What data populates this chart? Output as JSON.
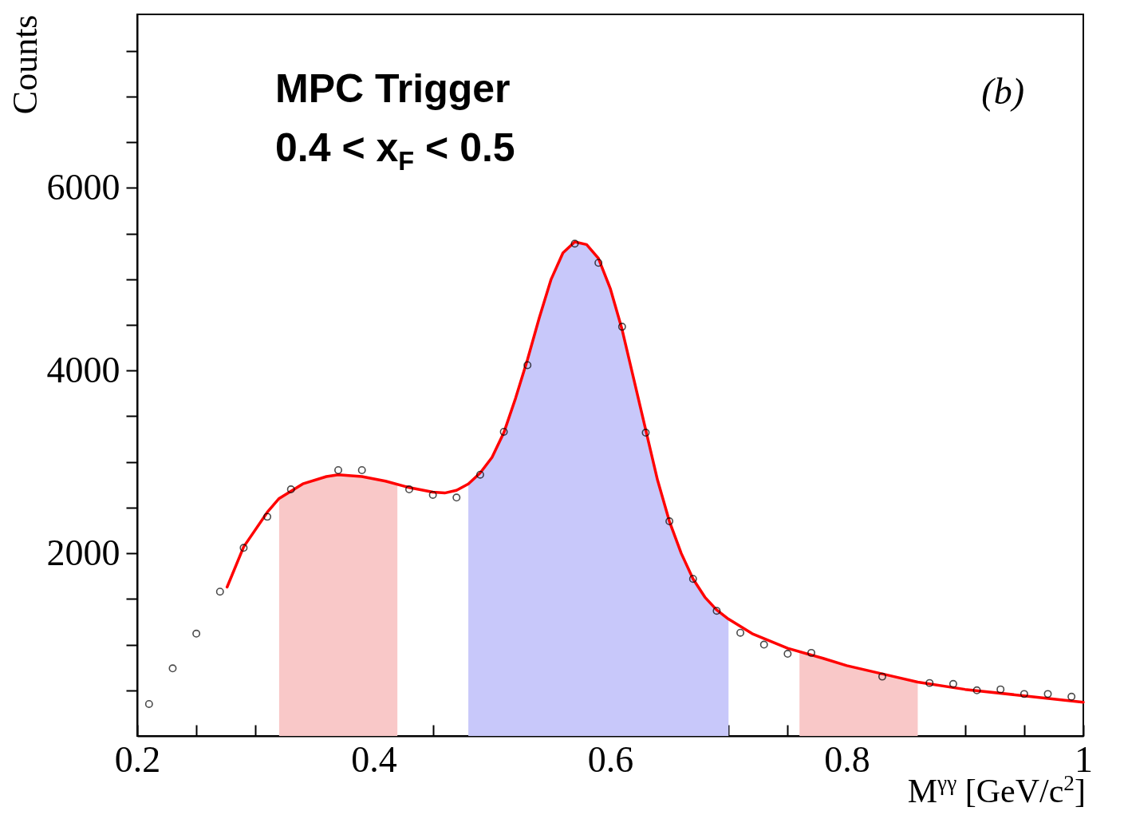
{
  "chart_data": {
    "type": "scatter",
    "xlabel": "M$^{γγ}$ [GeV/c$^{2}$]",
    "ylabel": "Counts",
    "annotations": [
      "MPC Trigger",
      "0.4 < x$_{F}$ < 0.5",
      "(b)"
    ],
    "xlim": [
      0.2,
      1.0
    ],
    "xticks": [
      0.2,
      {
        "value": 0.25,
        "label": null
      },
      {
        "value": 0.3,
        "label": null
      },
      {
        "value": 0.35,
        "label": null
      },
      0.4,
      {
        "value": 0.45,
        "label": null
      },
      {
        "value": 0.5,
        "label": null
      },
      {
        "value": 0.55,
        "label": null
      },
      0.6,
      {
        "value": 0.65,
        "label": null
      },
      {
        "value": 0.7,
        "label": null
      },
      {
        "value": 0.75,
        "label": null
      },
      0.8,
      {
        "value": 0.85,
        "label": null
      },
      {
        "value": 0.9,
        "label": null
      },
      {
        "value": 0.95,
        "label": null
      },
      1
    ],
    "ylim": [
      0,
      7900
    ],
    "yticks": [
      {
        "value": 500,
        "label": null
      },
      {
        "value": 1000,
        "label": null
      },
      {
        "value": 1500,
        "label": null
      },
      2000,
      {
        "value": 2500,
        "label": null
      },
      {
        "value": 3000,
        "label": null
      },
      {
        "value": 3500,
        "label": null
      },
      4000,
      {
        "value": 4500,
        "label": null
      },
      {
        "value": 5000,
        "label": null
      },
      {
        "value": 5500,
        "label": null
      },
      6000,
      {
        "value": 6500,
        "label": null
      },
      {
        "value": 7000,
        "label": null
      },
      {
        "value": 7500,
        "label": null
      }
    ],
    "grid": false,
    "series": [
      {
        "type": "area",
        "color": "#f9c8c8",
        "x": [
          0.32,
          0.34,
          0.36,
          0.37,
          0.39,
          0.41,
          0.42
        ],
        "values": [
          2600,
          2760,
          2840,
          2860,
          2840,
          2790,
          2760
        ]
      },
      {
        "type": "area",
        "color": "#c8c8fa",
        "x": [
          0.48,
          0.49,
          0.5,
          0.51,
          0.52,
          0.53,
          0.54,
          0.55,
          0.56,
          0.57,
          0.58,
          0.59,
          0.6,
          0.61,
          0.62,
          0.63,
          0.64,
          0.65,
          0.66,
          0.67,
          0.68,
          0.69,
          0.7
        ],
        "values": [
          2760,
          2880,
          3050,
          3320,
          3700,
          4120,
          4580,
          5000,
          5290,
          5410,
          5380,
          5230,
          4900,
          4450,
          3900,
          3350,
          2800,
          2350,
          2000,
          1720,
          1520,
          1380,
          1280
        ]
      },
      {
        "type": "area",
        "color": "#f9c8c8",
        "x": [
          0.76,
          0.78,
          0.8,
          0.82,
          0.84,
          0.86
        ],
        "values": [
          920,
          850,
          770,
          710,
          650,
          590
        ]
      },
      {
        "type": "line",
        "color": "#ff0000",
        "x": [
          0.276,
          0.29,
          0.31,
          0.32,
          0.34,
          0.36,
          0.37,
          0.39,
          0.41,
          0.43,
          0.45,
          0.46,
          0.47,
          0.48,
          0.49,
          0.5,
          0.51,
          0.52,
          0.53,
          0.54,
          0.55,
          0.56,
          0.57,
          0.58,
          0.59,
          0.6,
          0.61,
          0.62,
          0.63,
          0.64,
          0.65,
          0.66,
          0.67,
          0.68,
          0.69,
          0.7,
          0.72,
          0.75,
          0.78,
          0.8,
          0.84,
          0.86,
          0.9,
          0.95,
          1.0
        ],
        "values": [
          1630,
          2070,
          2450,
          2600,
          2760,
          2840,
          2860,
          2840,
          2790,
          2720,
          2670,
          2660,
          2690,
          2760,
          2880,
          3050,
          3320,
          3700,
          4120,
          4580,
          5000,
          5290,
          5410,
          5380,
          5230,
          4900,
          4450,
          3900,
          3350,
          2800,
          2350,
          2000,
          1720,
          1520,
          1380,
          1280,
          1120,
          960,
          850,
          770,
          650,
          590,
          510,
          440,
          370
        ]
      },
      {
        "marker": "circle",
        "color": "#000000",
        "x": [
          0.21,
          0.23,
          0.25,
          0.27,
          0.29,
          0.31,
          0.33,
          0.37,
          0.39,
          0.43,
          0.45,
          0.47,
          0.49,
          0.51,
          0.53,
          0.57,
          0.59,
          0.61,
          0.63,
          0.65,
          0.67,
          0.69,
          0.71,
          0.73,
          0.75,
          0.77,
          0.83,
          0.87,
          0.89,
          0.91,
          0.93,
          0.95,
          0.97,
          0.99
        ],
        "values": [
          350,
          740,
          1120,
          1580,
          2060,
          2400,
          2700,
          2910,
          2910,
          2700,
          2640,
          2610,
          2860,
          3330,
          4060,
          5390,
          5180,
          4480,
          3320,
          2350,
          1720,
          1370,
          1130,
          1000,
          900,
          910,
          650,
          580,
          570,
          500,
          510,
          460,
          460,
          430
        ]
      }
    ]
  }
}
